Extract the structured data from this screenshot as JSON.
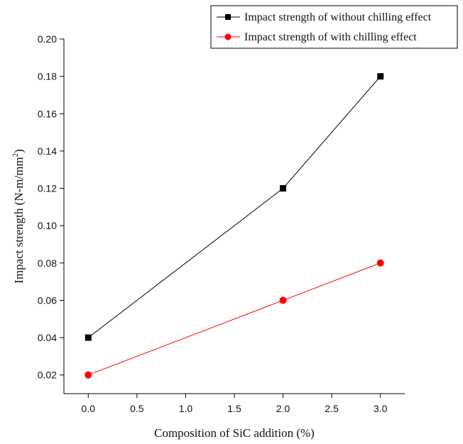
{
  "chart_data": {
    "type": "line",
    "title": "",
    "xlabel": "Composition of SiC addition (%)",
    "ylabel_main": "Impact strength (N-m/mm",
    "ylabel_sup": "2",
    "ylabel_close": ")",
    "xlim": [
      -0.25,
      3.25
    ],
    "ylim": [
      0.01,
      0.2
    ],
    "x_ticks": [
      0.0,
      0.5,
      1.0,
      1.5,
      2.0,
      2.5,
      3.0
    ],
    "x_tick_labels": [
      "0.0",
      "0.5",
      "1.0",
      "1.5",
      "2.0",
      "2.5",
      "3.0"
    ],
    "y_ticks": [
      0.02,
      0.04,
      0.06,
      0.08,
      0.1,
      0.12,
      0.14,
      0.16,
      0.18,
      0.2
    ],
    "y_tick_labels": [
      "0.02",
      "0.04",
      "0.06",
      "0.08",
      "0.10",
      "0.12",
      "0.14",
      "0.16",
      "0.18",
      "0.20"
    ],
    "x": [
      0.0,
      2.0,
      3.0
    ],
    "series": [
      {
        "name": "Impact strength of without chilling effect",
        "values": [
          0.04,
          0.12,
          0.18
        ],
        "color": "#000000",
        "marker": "square"
      },
      {
        "name": "Impact strength of with chilling effect",
        "values": [
          0.02,
          0.06,
          0.08
        ],
        "color": "#ff0000",
        "marker": "circle"
      }
    ],
    "legend_position": "top-right",
    "grid": false
  }
}
